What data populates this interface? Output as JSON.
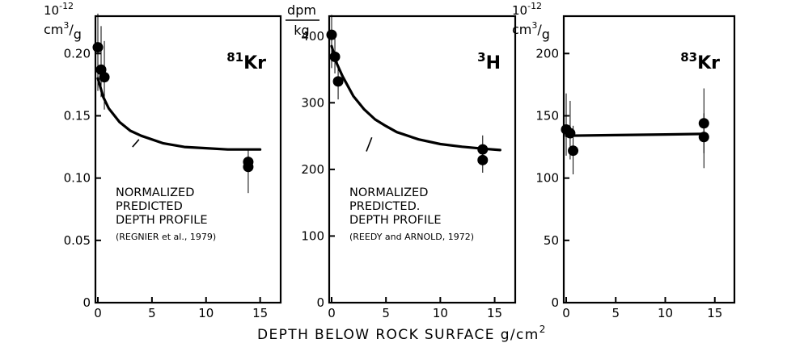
{
  "colors": {
    "ink": "#000000",
    "background": "#ffffff"
  },
  "shared_xlabel": "DEPTH BELOW ROCK SURFACE  g/cm",
  "shared_xlabel_superscript": "2",
  "chart_data": [
    {
      "type": "scatter",
      "nuclide_mass": "81",
      "nuclide_symbol": "Kr",
      "ylabel_exponent_base": "10",
      "ylabel_exponent": "-12",
      "ylabel_unit_numerator": "cm",
      "ylabel_unit_superscript": "3",
      "ylabel_unit_denominator": "g",
      "xlim": [
        0,
        16
      ],
      "ylim": [
        0,
        0.23
      ],
      "x_ticks": [
        0,
        5,
        10,
        15
      ],
      "y_ticks": [
        0,
        0.05,
        0.1,
        0.15,
        0.2
      ],
      "y_tick_labels": [
        "0",
        "0.05",
        "0.10",
        "0.15",
        "0.20"
      ],
      "points": [
        {
          "x": 0.0,
          "y": 0.205,
          "err_low": 0.17,
          "err_high": 0.232
        },
        {
          "x": 0.3,
          "y": 0.187,
          "err_low": 0.165,
          "err_high": 0.222
        },
        {
          "x": 0.6,
          "y": 0.181,
          "err_low": 0.155,
          "err_high": 0.21
        },
        {
          "x": 13.9,
          "y": 0.113,
          "err_low": 0.106,
          "err_high": 0.123
        },
        {
          "x": 13.9,
          "y": 0.109,
          "err_low": 0.088,
          "err_high": 0.118
        }
      ],
      "curve": {
        "points": [
          [
            0,
            0.18
          ],
          [
            0.5,
            0.165
          ],
          [
            1,
            0.156
          ],
          [
            2,
            0.145
          ],
          [
            3,
            0.138
          ],
          [
            4,
            0.134
          ],
          [
            6,
            0.128
          ],
          [
            8,
            0.125
          ],
          [
            10,
            0.124
          ],
          [
            12,
            0.123
          ],
          [
            14,
            0.123
          ],
          [
            15,
            0.123
          ]
        ]
      },
      "annotation": {
        "lines": [
          "NORMALIZED",
          "PREDICTED",
          "DEPTH PROFILE"
        ],
        "citation": "(REGNIER et al., 1979)",
        "pointer": [
          [
            3.2,
            0.125
          ],
          [
            3.8,
            0.131
          ]
        ]
      }
    },
    {
      "type": "scatter",
      "nuclide_mass": "3",
      "nuclide_symbol": "H",
      "ylabel_numerator": "dpm",
      "ylabel_denominator": "kg",
      "xlim": [
        0,
        16
      ],
      "ylim": [
        0,
        430
      ],
      "x_ticks": [
        0,
        5,
        10,
        15
      ],
      "y_ticks": [
        0,
        100,
        200,
        300,
        400
      ],
      "y_tick_labels": [
        "0",
        "100",
        "200",
        "300",
        "400"
      ],
      "points": [
        {
          "x": 0.0,
          "y": 402,
          "err_low": 352,
          "err_high": 432
        },
        {
          "x": 0.3,
          "y": 369,
          "err_low": 344,
          "err_high": 396
        },
        {
          "x": 0.6,
          "y": 332,
          "err_low": 305,
          "err_high": 351
        },
        {
          "x": 13.9,
          "y": 230,
          "err_low": 219,
          "err_high": 251
        },
        {
          "x": 13.9,
          "y": 214,
          "err_low": 195,
          "err_high": 226
        }
      ],
      "curve": {
        "points": [
          [
            0,
            385
          ],
          [
            0.5,
            358
          ],
          [
            1,
            340
          ],
          [
            2,
            310
          ],
          [
            3,
            290
          ],
          [
            4,
            275
          ],
          [
            5,
            265
          ],
          [
            6,
            256
          ],
          [
            8,
            245
          ],
          [
            10,
            238
          ],
          [
            12,
            234
          ],
          [
            14,
            231
          ],
          [
            15.5,
            229
          ]
        ]
      },
      "annotation": {
        "lines": [
          "NORMALIZED",
          "PREDICTED.",
          "DEPTH PROFILE"
        ],
        "citation": "(REEDY and ARNOLD, 1972)",
        "pointer": [
          [
            3.2,
            227
          ],
          [
            3.7,
            248
          ]
        ]
      }
    },
    {
      "type": "scatter",
      "nuclide_mass": "83",
      "nuclide_symbol": "Kr",
      "ylabel_exponent_base": "10",
      "ylabel_exponent": "-12",
      "ylabel_unit_numerator": "cm",
      "ylabel_unit_superscript": "3",
      "ylabel_unit_denominator": "g",
      "xlim": [
        0,
        16
      ],
      "ylim": [
        0,
        230
      ],
      "x_ticks": [
        0,
        5,
        10,
        15
      ],
      "y_ticks": [
        0,
        50,
        100,
        150,
        200
      ],
      "y_tick_labels": [
        "0",
        "50",
        "100",
        "150",
        "200"
      ],
      "points": [
        {
          "x": 0.0,
          "y": 139,
          "err_low": 118,
          "err_high": 168
        },
        {
          "x": 0.4,
          "y": 136,
          "err_low": 115,
          "err_high": 162
        },
        {
          "x": 0.7,
          "y": 122,
          "err_low": 103,
          "err_high": 142
        },
        {
          "x": 13.9,
          "y": 144,
          "err_low": 120,
          "err_high": 172
        },
        {
          "x": 13.9,
          "y": 133,
          "err_low": 108,
          "err_high": 152
        }
      ],
      "curve": {
        "points": [
          [
            0,
            134
          ],
          [
            5,
            134.5
          ],
          [
            10,
            135
          ],
          [
            13.9,
            135.5
          ]
        ]
      }
    }
  ]
}
